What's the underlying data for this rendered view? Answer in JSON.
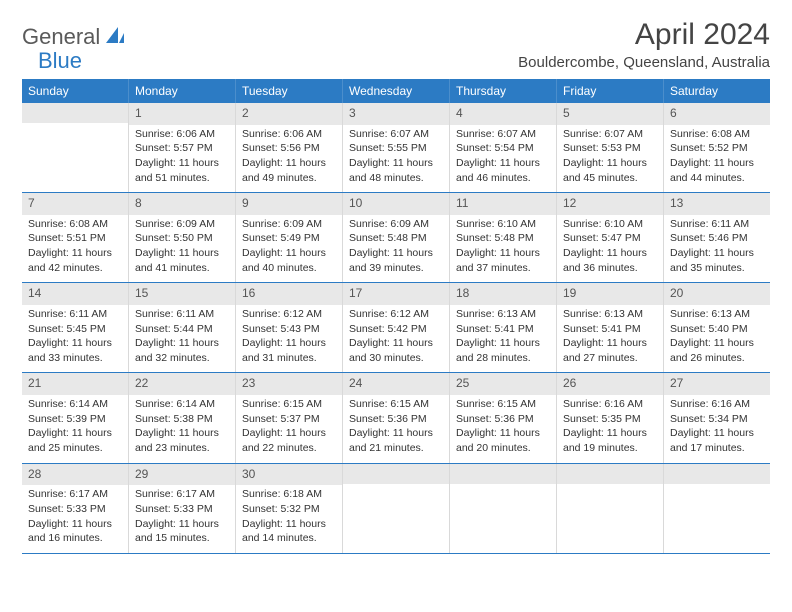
{
  "logo": {
    "text1": "General",
    "text2": "Blue"
  },
  "title": "April 2024",
  "location": "Bouldercombe, Queensland, Australia",
  "colors": {
    "header_bg": "#2c7bc4",
    "header_text": "#ffffff",
    "daynum_bg": "#e8e8e8",
    "text": "#333333",
    "week_border": "#2c7bc4",
    "cell_border": "#d9d9d9",
    "page_bg": "#ffffff"
  },
  "typography": {
    "title_fontsize": 30,
    "location_fontsize": 15,
    "dayheader_fontsize": 12,
    "daynum_fontsize": 12,
    "detail_fontsize": 10.5
  },
  "day_headers": [
    "Sunday",
    "Monday",
    "Tuesday",
    "Wednesday",
    "Thursday",
    "Friday",
    "Saturday"
  ],
  "weeks": [
    [
      {
        "n": "",
        "sunrise": "",
        "sunset": "",
        "daylight1": "",
        "daylight2": ""
      },
      {
        "n": "1",
        "sunrise": "Sunrise: 6:06 AM",
        "sunset": "Sunset: 5:57 PM",
        "daylight1": "Daylight: 11 hours",
        "daylight2": "and 51 minutes."
      },
      {
        "n": "2",
        "sunrise": "Sunrise: 6:06 AM",
        "sunset": "Sunset: 5:56 PM",
        "daylight1": "Daylight: 11 hours",
        "daylight2": "and 49 minutes."
      },
      {
        "n": "3",
        "sunrise": "Sunrise: 6:07 AM",
        "sunset": "Sunset: 5:55 PM",
        "daylight1": "Daylight: 11 hours",
        "daylight2": "and 48 minutes."
      },
      {
        "n": "4",
        "sunrise": "Sunrise: 6:07 AM",
        "sunset": "Sunset: 5:54 PM",
        "daylight1": "Daylight: 11 hours",
        "daylight2": "and 46 minutes."
      },
      {
        "n": "5",
        "sunrise": "Sunrise: 6:07 AM",
        "sunset": "Sunset: 5:53 PM",
        "daylight1": "Daylight: 11 hours",
        "daylight2": "and 45 minutes."
      },
      {
        "n": "6",
        "sunrise": "Sunrise: 6:08 AM",
        "sunset": "Sunset: 5:52 PM",
        "daylight1": "Daylight: 11 hours",
        "daylight2": "and 44 minutes."
      }
    ],
    [
      {
        "n": "7",
        "sunrise": "Sunrise: 6:08 AM",
        "sunset": "Sunset: 5:51 PM",
        "daylight1": "Daylight: 11 hours",
        "daylight2": "and 42 minutes."
      },
      {
        "n": "8",
        "sunrise": "Sunrise: 6:09 AM",
        "sunset": "Sunset: 5:50 PM",
        "daylight1": "Daylight: 11 hours",
        "daylight2": "and 41 minutes."
      },
      {
        "n": "9",
        "sunrise": "Sunrise: 6:09 AM",
        "sunset": "Sunset: 5:49 PM",
        "daylight1": "Daylight: 11 hours",
        "daylight2": "and 40 minutes."
      },
      {
        "n": "10",
        "sunrise": "Sunrise: 6:09 AM",
        "sunset": "Sunset: 5:48 PM",
        "daylight1": "Daylight: 11 hours",
        "daylight2": "and 39 minutes."
      },
      {
        "n": "11",
        "sunrise": "Sunrise: 6:10 AM",
        "sunset": "Sunset: 5:48 PM",
        "daylight1": "Daylight: 11 hours",
        "daylight2": "and 37 minutes."
      },
      {
        "n": "12",
        "sunrise": "Sunrise: 6:10 AM",
        "sunset": "Sunset: 5:47 PM",
        "daylight1": "Daylight: 11 hours",
        "daylight2": "and 36 minutes."
      },
      {
        "n": "13",
        "sunrise": "Sunrise: 6:11 AM",
        "sunset": "Sunset: 5:46 PM",
        "daylight1": "Daylight: 11 hours",
        "daylight2": "and 35 minutes."
      }
    ],
    [
      {
        "n": "14",
        "sunrise": "Sunrise: 6:11 AM",
        "sunset": "Sunset: 5:45 PM",
        "daylight1": "Daylight: 11 hours",
        "daylight2": "and 33 minutes."
      },
      {
        "n": "15",
        "sunrise": "Sunrise: 6:11 AM",
        "sunset": "Sunset: 5:44 PM",
        "daylight1": "Daylight: 11 hours",
        "daylight2": "and 32 minutes."
      },
      {
        "n": "16",
        "sunrise": "Sunrise: 6:12 AM",
        "sunset": "Sunset: 5:43 PM",
        "daylight1": "Daylight: 11 hours",
        "daylight2": "and 31 minutes."
      },
      {
        "n": "17",
        "sunrise": "Sunrise: 6:12 AM",
        "sunset": "Sunset: 5:42 PM",
        "daylight1": "Daylight: 11 hours",
        "daylight2": "and 30 minutes."
      },
      {
        "n": "18",
        "sunrise": "Sunrise: 6:13 AM",
        "sunset": "Sunset: 5:41 PM",
        "daylight1": "Daylight: 11 hours",
        "daylight2": "and 28 minutes."
      },
      {
        "n": "19",
        "sunrise": "Sunrise: 6:13 AM",
        "sunset": "Sunset: 5:41 PM",
        "daylight1": "Daylight: 11 hours",
        "daylight2": "and 27 minutes."
      },
      {
        "n": "20",
        "sunrise": "Sunrise: 6:13 AM",
        "sunset": "Sunset: 5:40 PM",
        "daylight1": "Daylight: 11 hours",
        "daylight2": "and 26 minutes."
      }
    ],
    [
      {
        "n": "21",
        "sunrise": "Sunrise: 6:14 AM",
        "sunset": "Sunset: 5:39 PM",
        "daylight1": "Daylight: 11 hours",
        "daylight2": "and 25 minutes."
      },
      {
        "n": "22",
        "sunrise": "Sunrise: 6:14 AM",
        "sunset": "Sunset: 5:38 PM",
        "daylight1": "Daylight: 11 hours",
        "daylight2": "and 23 minutes."
      },
      {
        "n": "23",
        "sunrise": "Sunrise: 6:15 AM",
        "sunset": "Sunset: 5:37 PM",
        "daylight1": "Daylight: 11 hours",
        "daylight2": "and 22 minutes."
      },
      {
        "n": "24",
        "sunrise": "Sunrise: 6:15 AM",
        "sunset": "Sunset: 5:36 PM",
        "daylight1": "Daylight: 11 hours",
        "daylight2": "and 21 minutes."
      },
      {
        "n": "25",
        "sunrise": "Sunrise: 6:15 AM",
        "sunset": "Sunset: 5:36 PM",
        "daylight1": "Daylight: 11 hours",
        "daylight2": "and 20 minutes."
      },
      {
        "n": "26",
        "sunrise": "Sunrise: 6:16 AM",
        "sunset": "Sunset: 5:35 PM",
        "daylight1": "Daylight: 11 hours",
        "daylight2": "and 19 minutes."
      },
      {
        "n": "27",
        "sunrise": "Sunrise: 6:16 AM",
        "sunset": "Sunset: 5:34 PM",
        "daylight1": "Daylight: 11 hours",
        "daylight2": "and 17 minutes."
      }
    ],
    [
      {
        "n": "28",
        "sunrise": "Sunrise: 6:17 AM",
        "sunset": "Sunset: 5:33 PM",
        "daylight1": "Daylight: 11 hours",
        "daylight2": "and 16 minutes."
      },
      {
        "n": "29",
        "sunrise": "Sunrise: 6:17 AM",
        "sunset": "Sunset: 5:33 PM",
        "daylight1": "Daylight: 11 hours",
        "daylight2": "and 15 minutes."
      },
      {
        "n": "30",
        "sunrise": "Sunrise: 6:18 AM",
        "sunset": "Sunset: 5:32 PM",
        "daylight1": "Daylight: 11 hours",
        "daylight2": "and 14 minutes."
      },
      {
        "n": "",
        "sunrise": "",
        "sunset": "",
        "daylight1": "",
        "daylight2": ""
      },
      {
        "n": "",
        "sunrise": "",
        "sunset": "",
        "daylight1": "",
        "daylight2": ""
      },
      {
        "n": "",
        "sunrise": "",
        "sunset": "",
        "daylight1": "",
        "daylight2": ""
      },
      {
        "n": "",
        "sunrise": "",
        "sunset": "",
        "daylight1": "",
        "daylight2": ""
      }
    ]
  ]
}
